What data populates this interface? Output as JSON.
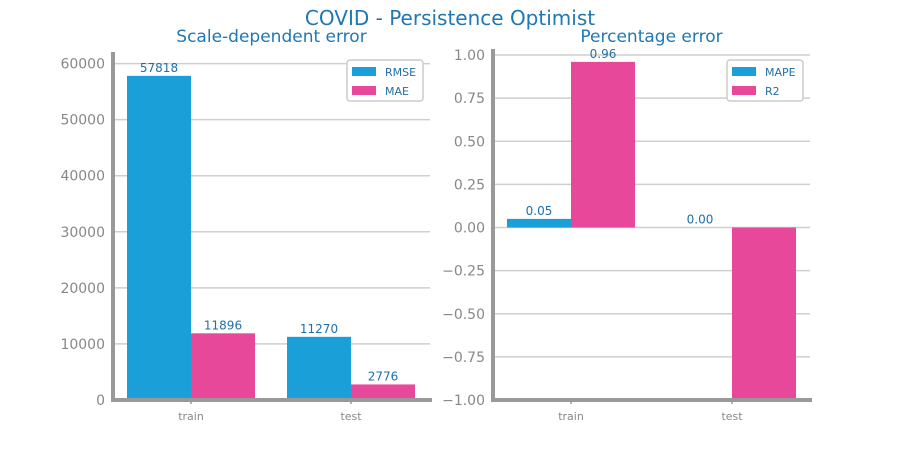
{
  "figure": {
    "title": "COVID - Persistence Optimist"
  },
  "colors": {
    "title": "#1f77b4",
    "series_a": "#1a9fd9",
    "series_b": "#e8489a",
    "axis": "#999999",
    "grid": "#cfcfcf",
    "tick_text": "#888888",
    "data_label": "#1f6fa8"
  },
  "chart_data": [
    {
      "type": "bar",
      "title": "Scale-dependent error",
      "xlabel": "",
      "ylabel": "",
      "categories": [
        "train",
        "test"
      ],
      "series": [
        {
          "name": "RMSE",
          "values": [
            57818,
            11270
          ],
          "labels": [
            "57818",
            "11270"
          ]
        },
        {
          "name": "MAE",
          "values": [
            11896,
            2776
          ],
          "labels": [
            "11896",
            "2776"
          ]
        }
      ],
      "ylim": [
        0,
        61000
      ],
      "yticks": [
        0,
        10000,
        20000,
        30000,
        40000,
        50000,
        60000
      ],
      "ytick_labels": [
        "0",
        "10000",
        "20000",
        "30000",
        "40000",
        "50000",
        "60000"
      ],
      "grid": true,
      "legend_position": "top-right"
    },
    {
      "type": "bar",
      "title": "Percentage error",
      "xlabel": "",
      "ylabel": "",
      "categories": [
        "train",
        "test"
      ],
      "series": [
        {
          "name": "MAPE",
          "values": [
            0.05,
            0.0
          ],
          "labels": [
            "0.05",
            "0.00"
          ]
        },
        {
          "name": "R2",
          "values": [
            0.96,
            -1.0
          ],
          "labels": [
            "0.96",
            ""
          ]
        }
      ],
      "ylim": [
        -1.0,
        1.0
      ],
      "yticks": [
        -1.0,
        -0.75,
        -0.5,
        -0.25,
        0.0,
        0.25,
        0.5,
        0.75,
        1.0
      ],
      "ytick_labels": [
        "−1.00",
        "−0.75",
        "−0.50",
        "−0.25",
        "0.00",
        "0.25",
        "0.50",
        "0.75",
        "1.00"
      ],
      "grid": true,
      "legend_position": "top-right"
    }
  ]
}
